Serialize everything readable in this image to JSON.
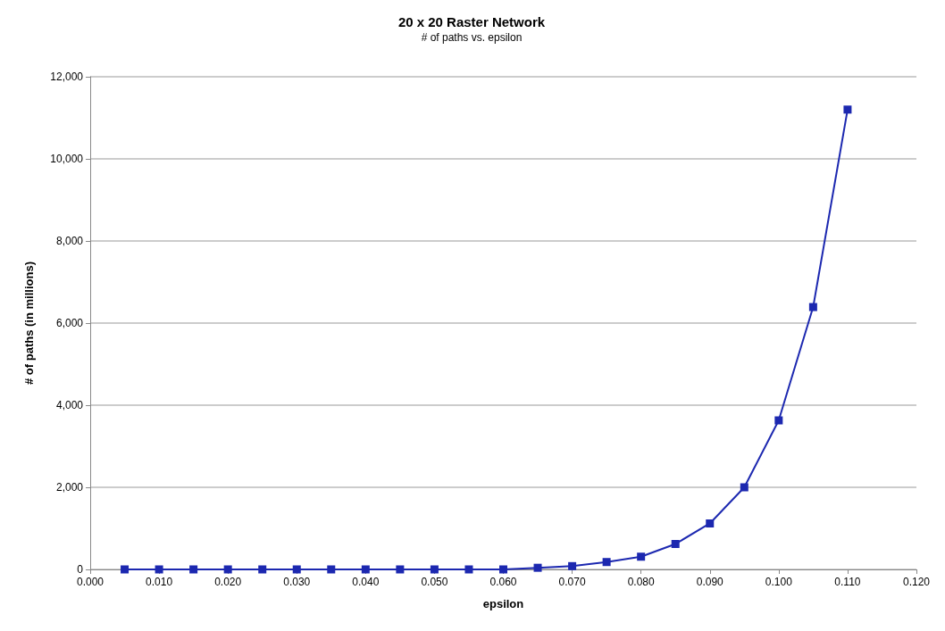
{
  "chart_data": {
    "type": "line",
    "title": "20 x 20 Raster Network",
    "subtitle": "# of paths vs. epsilon",
    "xlabel": "epsilon",
    "ylabel": "# of paths (in millions)",
    "x": [
      0.005,
      0.01,
      0.015,
      0.02,
      0.025,
      0.03,
      0.035,
      0.04,
      0.045,
      0.05,
      0.055,
      0.06,
      0.065,
      0.07,
      0.075,
      0.08,
      0.085,
      0.09,
      0.095,
      0.1,
      0.105,
      0.11
    ],
    "series": [
      {
        "color": "#1c28b0",
        "values": [
          0,
          0,
          0,
          0,
          0,
          0,
          0,
          0,
          0,
          0,
          0,
          0,
          40,
          80,
          180,
          310,
          620,
          1120,
          2000,
          3630,
          6390,
          11200
        ]
      }
    ],
    "xlim": [
      0,
      0.12
    ],
    "xticks": [
      {
        "value": 0,
        "label": "0.000"
      },
      {
        "value": 0.01,
        "label": "0.010"
      },
      {
        "value": 0.02,
        "label": "0.020"
      },
      {
        "value": 0.03,
        "label": "0.030"
      },
      {
        "value": 0.04,
        "label": "0.040"
      },
      {
        "value": 0.05,
        "label": "0.050"
      },
      {
        "value": 0.06,
        "label": "0.060"
      },
      {
        "value": 0.07,
        "label": "0.070"
      },
      {
        "value": 0.08,
        "label": "0.080"
      },
      {
        "value": 0.09,
        "label": "0.090"
      },
      {
        "value": 0.1,
        "label": "0.100"
      },
      {
        "value": 0.11,
        "label": "0.110"
      },
      {
        "value": 0.12,
        "label": "0.120"
      }
    ],
    "ylim": [
      0,
      12000
    ],
    "yticks": [
      0,
      {
        "value": 2000,
        "label": "2,000"
      },
      {
        "value": 4000,
        "label": "4,000"
      },
      {
        "value": 6000,
        "label": "6,000"
      },
      {
        "value": 8000,
        "label": "8,000"
      },
      {
        "value": 10000,
        "label": "10,000"
      },
      {
        "value": 12000,
        "label": "12,000"
      }
    ],
    "grid": "y",
    "marker": "square",
    "line_style": "solid"
  }
}
